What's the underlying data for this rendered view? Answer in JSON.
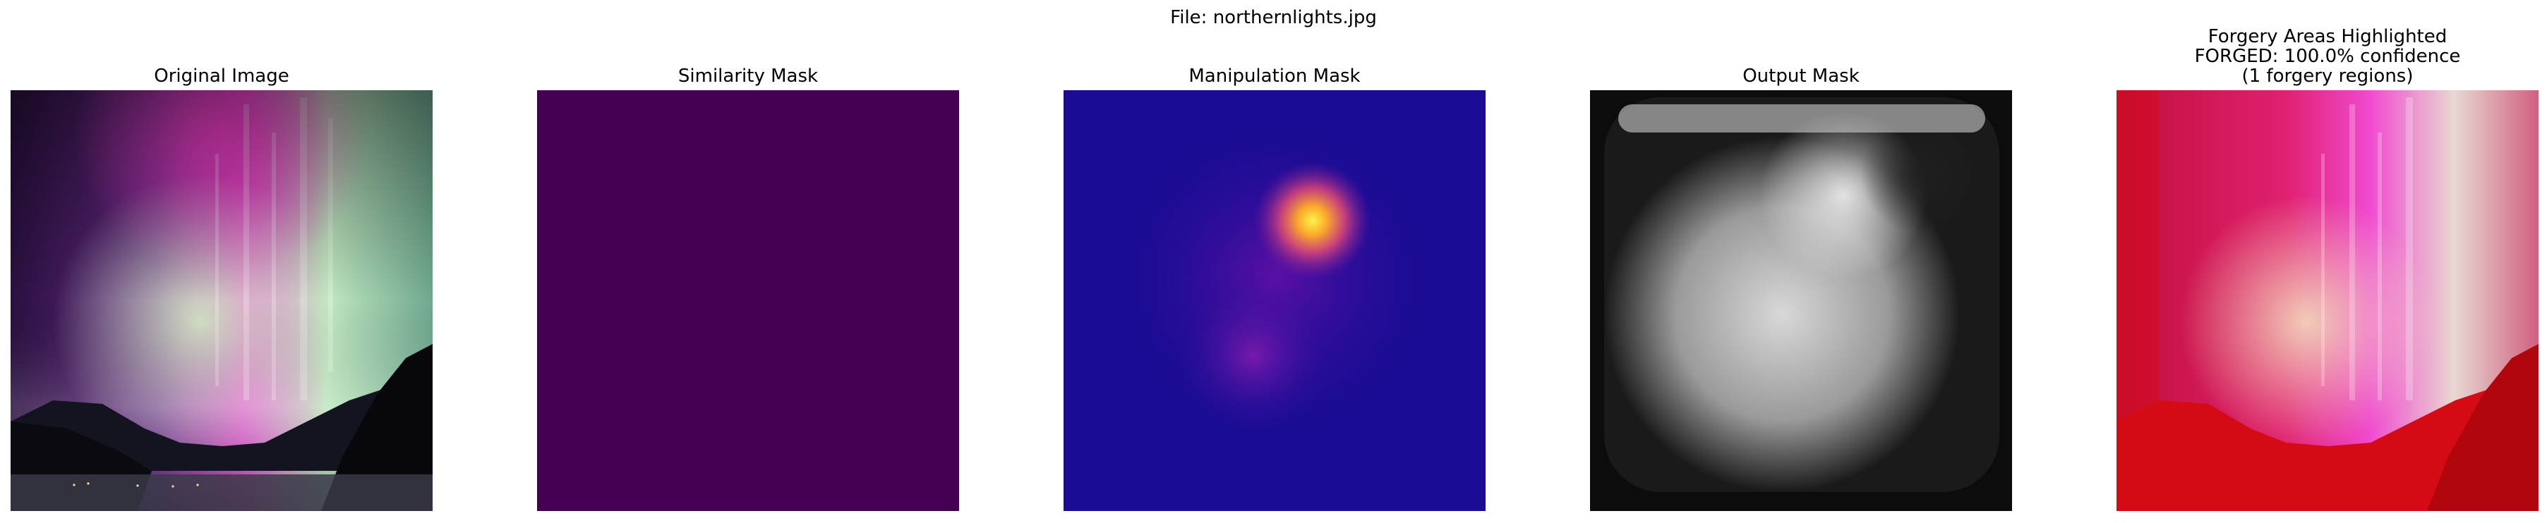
{
  "figure": {
    "suptitle": "File: northernlights.jpg"
  },
  "panels": [
    {
      "title": "Original Image",
      "content": "northern lights photo (aurora over mountains and lake)"
    },
    {
      "title": "Similarity Mask",
      "content": "uniform purple mask"
    },
    {
      "title": "Manipulation Mask",
      "content": "plasma heatmap with bright hotspot"
    },
    {
      "title": "Output Mask",
      "content": "grayscale blurred mask"
    },
    {
      "title": "Forgery Areas Highlighted\nFORGED: 100.0% confidence\n(1 forgery regions)",
      "content": "photo with red overlay on forged region"
    }
  ],
  "colors": {
    "similarity_fill": "#440154",
    "manipulation_base": "#1a0c94",
    "highlight_red": "#d40a14"
  }
}
